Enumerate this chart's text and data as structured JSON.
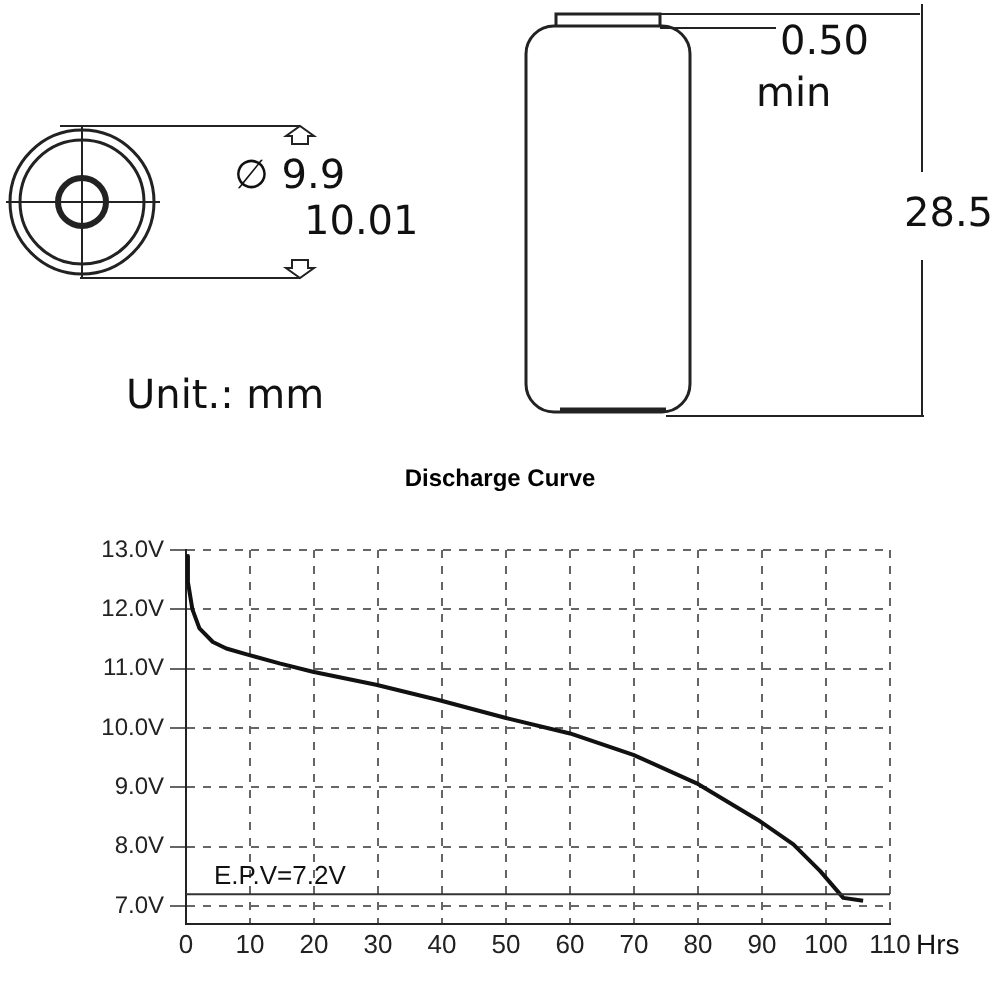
{
  "chart_data": {
    "type": "line",
    "title": "Discharge Curve",
    "xlabel": "Hrs",
    "annotations": [
      "∅ 9.9",
      "10.01",
      "0.50",
      "min",
      "28.5",
      "Unit.: mm"
    ],
    "series": [
      {
        "color": "#111111",
        "x": [
          0,
          0.3,
          1,
          2.1,
          4.2,
          6.3,
          9.9,
          14.6,
          19.8,
          29.7,
          39.6,
          50,
          60,
          69.9,
          79.8,
          89.7,
          94.9,
          99.1,
          102.7,
          105.8
        ],
        "values": [
          12.9,
          12.46,
          12.0,
          11.68,
          11.45,
          11.34,
          11.23,
          11.09,
          10.95,
          10.73,
          10.47,
          10.17,
          9.91,
          9.55,
          9.07,
          8.43,
          8.04,
          7.59,
          7.14,
          7.09
        ]
      }
    ],
    "xlim": [
      0,
      110
    ],
    "xticks": [
      0,
      10,
      20,
      30,
      40,
      50,
      60,
      70,
      80,
      90,
      100,
      110
    ],
    "ylim": [
      6.7,
      13
    ],
    "yticks": [
      {
        "value": 7,
        "label": "7.0V"
      },
      {
        "value": 8,
        "label": "8.0V"
      },
      {
        "value": 9,
        "label": "9.0V"
      },
      {
        "value": 10,
        "label": "10.0V"
      },
      {
        "value": 11,
        "label": "11.0V"
      },
      {
        "value": 12,
        "label": "12.0V"
      },
      {
        "value": 13,
        "label": "13.0V"
      }
    ],
    "ref_lines": [
      {
        "axis": "y",
        "value": 7.2,
        "label": "E.P.V=7.2V",
        "color": "#333333"
      }
    ],
    "grid": true,
    "legend": false
  }
}
